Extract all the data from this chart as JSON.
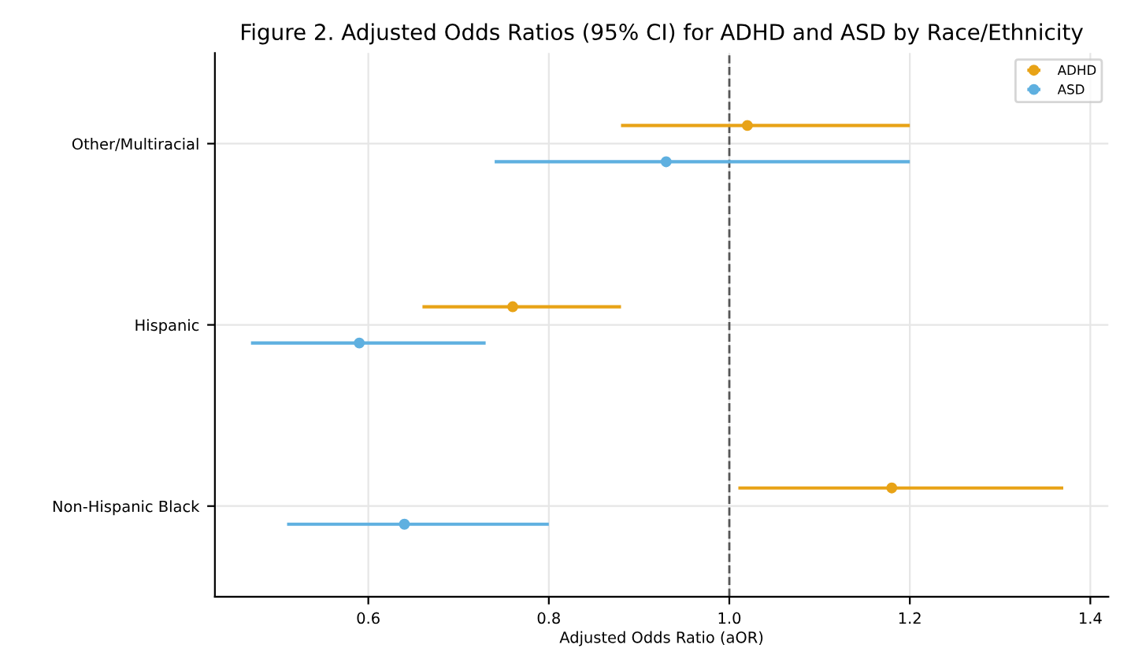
{
  "chart_data": {
    "type": "scatter",
    "orientation": "horizontal",
    "title": "Figure 2. Adjusted Odds Ratios (95% CI) for ADHD and ASD by Race/Ethnicity",
    "xlabel": "Adjusted Odds Ratio (aOR)",
    "categories": [
      "Other/Multiracial",
      "Hispanic",
      "Non-Hispanic Black"
    ],
    "series": [
      {
        "name": "ADHD",
        "color": "#e8a317",
        "values": [
          1.02,
          0.76,
          1.18
        ],
        "errors": [
          [
            0.88,
            1.2
          ],
          [
            0.66,
            0.88
          ],
          [
            1.01,
            1.37
          ]
        ]
      },
      {
        "name": "ASD",
        "color": "#5fb0e0",
        "values": [
          0.93,
          0.59,
          0.64
        ],
        "errors": [
          [
            0.74,
            1.2
          ],
          [
            0.47,
            0.73
          ],
          [
            0.51,
            0.8
          ]
        ]
      }
    ],
    "xlim": [
      0.43,
      1.42
    ],
    "xticks": [
      0.6,
      0.8,
      {
        "value": 1.0,
        "label": "1.0"
      },
      1.2,
      1.4
    ],
    "ref_lines": [
      {
        "axis": "x",
        "value": 1.0,
        "color": "#555555",
        "line_style": "dashed"
      }
    ],
    "grid": true,
    "legend": "top right",
    "marker": "circle"
  }
}
